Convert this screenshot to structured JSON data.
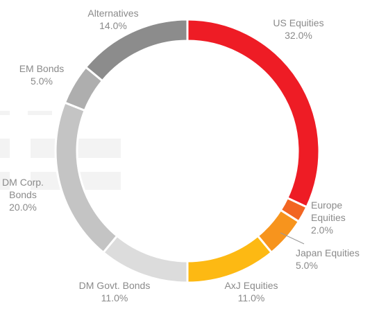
{
  "chart_data": {
    "type": "pie",
    "variant": "donut",
    "title": "",
    "legend": "none",
    "slices": [
      {
        "label": "US Equities",
        "label_lines": [
          "US Equities",
          "32.0%"
        ],
        "value": 32.0,
        "color": "#ee1c25"
      },
      {
        "label": "Europe Equities",
        "label_lines": [
          "Europe",
          "Equities",
          "2.0%"
        ],
        "value": 2.0,
        "color": "#f26522"
      },
      {
        "label": "Japan Equities",
        "label_lines": [
          "Japan Equities",
          "5.0%"
        ],
        "value": 5.0,
        "color": "#f7941d"
      },
      {
        "label": "AxJ Equities",
        "label_lines": [
          "AxJ Equities",
          "11.0%"
        ],
        "value": 11.0,
        "color": "#fdb913"
      },
      {
        "label": "DM Govt. Bonds",
        "label_lines": [
          "DM Govt. Bonds",
          "11.0%"
        ],
        "value": 11.0,
        "color": "#dcdcdc"
      },
      {
        "label": "DM Corp. Bonds",
        "label_lines": [
          "DM Corp.",
          "Bonds",
          "20.0%"
        ],
        "value": 20.0,
        "color": "#c4c4c4"
      },
      {
        "label": "EM Bonds",
        "label_lines": [
          "EM Bonds",
          "5.0%"
        ],
        "value": 5.0,
        "color": "#aeaeae"
      },
      {
        "label": "Alternatives",
        "label_lines": [
          "Alternatives",
          "14.0%"
        ],
        "value": 14.0,
        "color": "#8c8c8c"
      }
    ]
  }
}
